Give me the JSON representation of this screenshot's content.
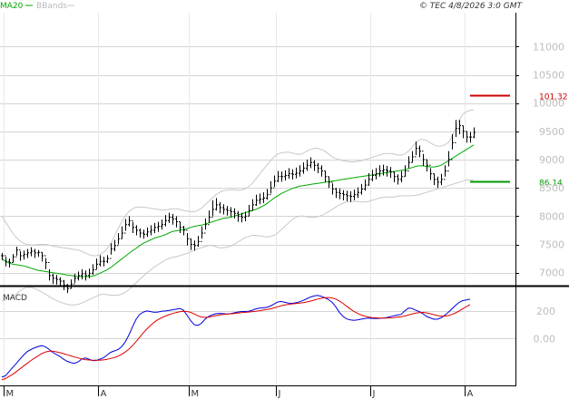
{
  "header": {
    "legend_ma": "MA20",
    "legend_bb": "BBands",
    "copyright": "© TEC 4/8/2026 3:0 GMT"
  },
  "colors": {
    "price": "#000000",
    "ma": "#00aa00",
    "bbands": "#c8c8c8",
    "macd": "#0000dd",
    "signal": "#dd0000",
    "resistance": "#cc0000",
    "support": "#009900",
    "grid": "#d4d4d4",
    "axis_label": "#bdbdbd"
  },
  "chart_data": [
    {
      "type": "ohlc",
      "panel": "price",
      "y_ticks": [
        7000,
        7500,
        8000,
        8500,
        9000,
        9500,
        10000,
        10500,
        11000
      ],
      "y_tick_labels": [
        "7000",
        "7500",
        "8000",
        "8500",
        "9000",
        "9500",
        "10000",
        "10500",
        "11000"
      ],
      "ylim": [
        6770,
        11600
      ],
      "x_month_labels": [
        "M",
        "A",
        "M",
        "J",
        "J",
        "A"
      ],
      "x_month_index": [
        1,
        27,
        52,
        76,
        102,
        128
      ],
      "x_range": [
        0,
        142
      ],
      "close": [
        7300,
        7200,
        7180,
        7280,
        7400,
        7300,
        7320,
        7350,
        7380,
        7350,
        7360,
        7300,
        7180,
        6950,
        6900,
        6880,
        6850,
        6780,
        6720,
        6800,
        6900,
        6950,
        6980,
        6950,
        6990,
        7050,
        7150,
        7200,
        7200,
        7250,
        7420,
        7480,
        7600,
        7700,
        7850,
        7920,
        7800,
        7750,
        7700,
        7680,
        7720,
        7750,
        7800,
        7820,
        7850,
        7920,
        7980,
        7950,
        7900,
        7800,
        7750,
        7600,
        7500,
        7480,
        7550,
        7700,
        7850,
        7980,
        8120,
        8200,
        8150,
        8120,
        8100,
        8080,
        8050,
        8000,
        7980,
        8000,
        8100,
        8200,
        8280,
        8300,
        8320,
        8380,
        8500,
        8620,
        8700,
        8700,
        8720,
        8750,
        8740,
        8760,
        8800,
        8850,
        8900,
        8950,
        8900,
        8850,
        8800,
        8700,
        8600,
        8480,
        8420,
        8400,
        8380,
        8360,
        8350,
        8380,
        8420,
        8480,
        8550,
        8650,
        8720,
        8750,
        8800,
        8820,
        8800,
        8780,
        8700,
        8650,
        8700,
        8800,
        8950,
        9050,
        9200,
        9150,
        9000,
        8900,
        8750,
        8650,
        8600,
        8650,
        8800,
        9000,
        9300,
        9550,
        9600,
        9500,
        9400,
        9400,
        9480
      ],
      "high": [
        7350,
        7280,
        7250,
        7330,
        7460,
        7380,
        7390,
        7420,
        7450,
        7420,
        7400,
        7360,
        7260,
        7060,
        6980,
        6960,
        6920,
        6870,
        6800,
        6880,
        6980,
        7020,
        7060,
        7040,
        7070,
        7150,
        7250,
        7310,
        7280,
        7310,
        7520,
        7580,
        7700,
        7820,
        7950,
        8000,
        7900,
        7840,
        7780,
        7760,
        7800,
        7840,
        7880,
        7900,
        7940,
        8020,
        8060,
        8040,
        8000,
        7900,
        7830,
        7700,
        7600,
        7570,
        7650,
        7820,
        7960,
        8100,
        8280,
        8320,
        8250,
        8210,
        8180,
        8160,
        8140,
        8090,
        8060,
        8080,
        8200,
        8300,
        8380,
        8400,
        8420,
        8480,
        8620,
        8720,
        8800,
        8790,
        8810,
        8850,
        8830,
        8860,
        8900,
        8950,
        9000,
        9040,
        8990,
        8940,
        8900,
        8800,
        8700,
        8580,
        8500,
        8490,
        8460,
        8450,
        8440,
        8470,
        8510,
        8570,
        8650,
        8760,
        8820,
        8850,
        8900,
        8910,
        8890,
        8870,
        8790,
        8740,
        8800,
        8900,
        9060,
        9150,
        9320,
        9250,
        9100,
        9000,
        8850,
        8750,
        8700,
        8750,
        8900,
        9150,
        9450,
        9700,
        9700,
        9600,
        9500,
        9490,
        9570
      ],
      "low": [
        7220,
        7110,
        7090,
        7180,
        7300,
        7210,
        7230,
        7260,
        7290,
        7260,
        7280,
        7200,
        7060,
        6860,
        6800,
        6790,
        6760,
        6690,
        6640,
        6720,
        6820,
        6860,
        6880,
        6860,
        6900,
        6960,
        7060,
        7110,
        7110,
        7170,
        7320,
        7380,
        7500,
        7600,
        7740,
        7820,
        7700,
        7660,
        7620,
        7600,
        7630,
        7660,
        7700,
        7720,
        7760,
        7820,
        7880,
        7850,
        7800,
        7700,
        7660,
        7480,
        7400,
        7390,
        7460,
        7600,
        7760,
        7880,
        8000,
        8100,
        8050,
        8030,
        8010,
        7990,
        7960,
        7900,
        7890,
        7910,
        8000,
        8100,
        8180,
        8210,
        8230,
        8290,
        8400,
        8520,
        8600,
        8610,
        8630,
        8660,
        8650,
        8670,
        8700,
        8750,
        8800,
        8850,
        8800,
        8760,
        8700,
        8600,
        8500,
        8380,
        8320,
        8300,
        8280,
        8260,
        8250,
        8280,
        8320,
        8380,
        8450,
        8540,
        8620,
        8650,
        8700,
        8720,
        8700,
        8680,
        8600,
        8560,
        8600,
        8700,
        8850,
        8950,
        9080,
        9040,
        8890,
        8790,
        8640,
        8550,
        8500,
        8550,
        8700,
        8880,
        9180,
        9400,
        9450,
        9380,
        9300,
        9300,
        9380
      ],
      "ma20": [
        7250,
        7200,
        7170,
        7150,
        7140,
        7130,
        7120,
        7100,
        7080,
        7060,
        7040,
        7030,
        7020,
        7010,
        7000,
        6990,
        6980,
        6970,
        6960,
        6950,
        6940,
        6930,
        6930,
        6930,
        6930,
        6940,
        6960,
        6990,
        7020,
        7050,
        7090,
        7140,
        7190,
        7240,
        7290,
        7340,
        7390,
        7430,
        7480,
        7520,
        7550,
        7580,
        7610,
        7630,
        7650,
        7670,
        7700,
        7730,
        7740,
        7750,
        7760,
        7780,
        7800,
        7820,
        7830,
        7840,
        7860,
        7880,
        7900,
        7920,
        7940,
        7960,
        7970,
        7980,
        8000,
        8020,
        8040,
        8060,
        8080,
        8100,
        8120,
        8150,
        8180,
        8220,
        8270,
        8320,
        8360,
        8400,
        8430,
        8460,
        8490,
        8510,
        8530,
        8540,
        8550,
        8560,
        8570,
        8580,
        8590,
        8600,
        8610,
        8620,
        8630,
        8640,
        8650,
        8660,
        8670,
        8680,
        8690,
        8700,
        8710,
        8720,
        8730,
        8740,
        8750,
        8760,
        8770,
        8780,
        8790,
        8800,
        8810,
        8820,
        8840,
        8860,
        8880,
        8890,
        8890,
        8880,
        8870,
        8870,
        8880,
        8900,
        8940,
        8980,
        9020,
        9060,
        9100,
        9140,
        9180,
        9220,
        9260
      ],
      "bb_upper": [
        8000,
        7900,
        7800,
        7700,
        7620,
        7560,
        7520,
        7500,
        7490,
        7490,
        7500,
        7500,
        7500,
        7490,
        7470,
        7460,
        7450,
        7440,
        7430,
        7420,
        7410,
        7400,
        7380,
        7350,
        7320,
        7300,
        7300,
        7320,
        7360,
        7420,
        7520,
        7640,
        7780,
        7900,
        8000,
        8080,
        8130,
        8160,
        8160,
        8160,
        8150,
        8140,
        8130,
        8120,
        8110,
        8110,
        8120,
        8130,
        8130,
        8120,
        8100,
        8090,
        8080,
        8080,
        8100,
        8140,
        8200,
        8260,
        8320,
        8380,
        8420,
        8450,
        8460,
        8470,
        8470,
        8460,
        8460,
        8480,
        8520,
        8580,
        8660,
        8740,
        8820,
        8900,
        8980,
        9050,
        9100,
        9120,
        9130,
        9130,
        9120,
        9100,
        9090,
        9110,
        9150,
        9180,
        9200,
        9200,
        9180,
        9150,
        9100,
        9050,
        9020,
        9000,
        8980,
        8970,
        8960,
        8960,
        8970,
        8980,
        9000,
        9020,
        9040,
        9060,
        9080,
        9100,
        9110,
        9110,
        9100,
        9080,
        9080,
        9100,
        9150,
        9220,
        9300,
        9350,
        9360,
        9340,
        9300,
        9260,
        9240,
        9240,
        9260,
        9300,
        9400,
        9550,
        9700,
        9800,
        9850,
        9870,
        9880
      ],
      "bb_lower": [
        6500,
        6520,
        6540,
        6570,
        6620,
        6680,
        6720,
        6740,
        6740,
        6720,
        6690,
        6660,
        6620,
        6580,
        6540,
        6510,
        6480,
        6460,
        6440,
        6430,
        6430,
        6440,
        6460,
        6490,
        6520,
        6550,
        6580,
        6610,
        6620,
        6610,
        6600,
        6600,
        6600,
        6620,
        6650,
        6700,
        6760,
        6820,
        6880,
        6940,
        7000,
        7050,
        7100,
        7140,
        7180,
        7220,
        7250,
        7270,
        7280,
        7300,
        7320,
        7340,
        7370,
        7400,
        7420,
        7440,
        7460,
        7480,
        7480,
        7460,
        7440,
        7440,
        7450,
        7470,
        7500,
        7540,
        7580,
        7620,
        7640,
        7660,
        7660,
        7650,
        7640,
        7630,
        7640,
        7660,
        7700,
        7760,
        7820,
        7880,
        7940,
        7980,
        8000,
        8000,
        7990,
        7980,
        7980,
        7990,
        8010,
        8040,
        8080,
        8120,
        8160,
        8200,
        8230,
        8250,
        8260,
        8260,
        8260,
        8250,
        8250,
        8260,
        8280,
        8300,
        8320,
        8330,
        8340,
        8340,
        8340,
        8350,
        8360,
        8360,
        8360,
        8360,
        8370,
        8380,
        8400,
        8420,
        8440,
        8460,
        8480,
        8500,
        8520,
        8540,
        8560,
        8580,
        8600,
        8620,
        8640,
        8640,
        8640
      ],
      "annotations": [
        {
          "label": "101.32",
          "value": 10132,
          "color": "#cc0000"
        },
        {
          "label": "86.14",
          "value": 8614,
          "color": "#009900"
        }
      ]
    },
    {
      "type": "line",
      "panel": "macd",
      "title": "MACD",
      "y_ticks": [
        0,
        200
      ],
      "y_tick_labels": [
        "0.00",
        "200"
      ],
      "ylim": [
        -340,
        370
      ],
      "series": [
        {
          "role": "macd",
          "values": [
            -280,
            -270,
            -240,
            -210,
            -180,
            -150,
            -120,
            -95,
            -80,
            -68,
            -58,
            -52,
            -60,
            -78,
            -100,
            -115,
            -130,
            -150,
            -165,
            -175,
            -180,
            -170,
            -150,
            -140,
            -150,
            -160,
            -160,
            -150,
            -140,
            -120,
            -100,
            -90,
            -80,
            -60,
            -25,
            25,
            85,
            140,
            175,
            192,
            200,
            195,
            190,
            192,
            197,
            200,
            203,
            208,
            212,
            218,
            206,
            170,
            130,
            100,
            95,
            110,
            140,
            160,
            172,
            180,
            182,
            180,
            178,
            180,
            186,
            192,
            196,
            196,
            198,
            205,
            215,
            220,
            222,
            226,
            235,
            250,
            265,
            268,
            262,
            256,
            255,
            259,
            266,
            276,
            288,
            300,
            308,
            312,
            306,
            296,
            282,
            262,
            230,
            190,
            160,
            142,
            135,
            132,
            135,
            140,
            145,
            148,
            146,
            145,
            146,
            148,
            152,
            158,
            165,
            170,
            175,
            200,
            220,
            218,
            205,
            195,
            180,
            160,
            150,
            140,
            140,
            150,
            168,
            190,
            215,
            240,
            262,
            275,
            280,
            285
          ]
        },
        {
          "role": "signal",
          "values": [
            -300,
            -290,
            -275,
            -260,
            -240,
            -220,
            -200,
            -180,
            -160,
            -142,
            -126,
            -110,
            -98,
            -92,
            -92,
            -97,
            -103,
            -110,
            -118,
            -126,
            -134,
            -141,
            -148,
            -153,
            -156,
            -158,
            -158,
            -157,
            -155,
            -151,
            -145,
            -138,
            -128,
            -115,
            -98,
            -78,
            -52,
            -22,
            10,
            42,
            70,
            95,
            118,
            136,
            150,
            162,
            172,
            181,
            188,
            194,
            198,
            196,
            190,
            178,
            165,
            156,
            153,
            155,
            160,
            166,
            171,
            175,
            177,
            179,
            181,
            184,
            187,
            190,
            192,
            195,
            198,
            202,
            206,
            210,
            215,
            222,
            230,
            238,
            244,
            248,
            251,
            253,
            256,
            260,
            265,
            271,
            278,
            286,
            292,
            296,
            297,
            294,
            286,
            272,
            254,
            234,
            214,
            196,
            182,
            170,
            162,
            156,
            152,
            150,
            148,
            148,
            148,
            150,
            152,
            155,
            158,
            163,
            170,
            178,
            184,
            188,
            189,
            186,
            180,
            173,
            166,
            162,
            162,
            166,
            174,
            186,
            200,
            216,
            232,
            246
          ]
        }
      ]
    }
  ]
}
